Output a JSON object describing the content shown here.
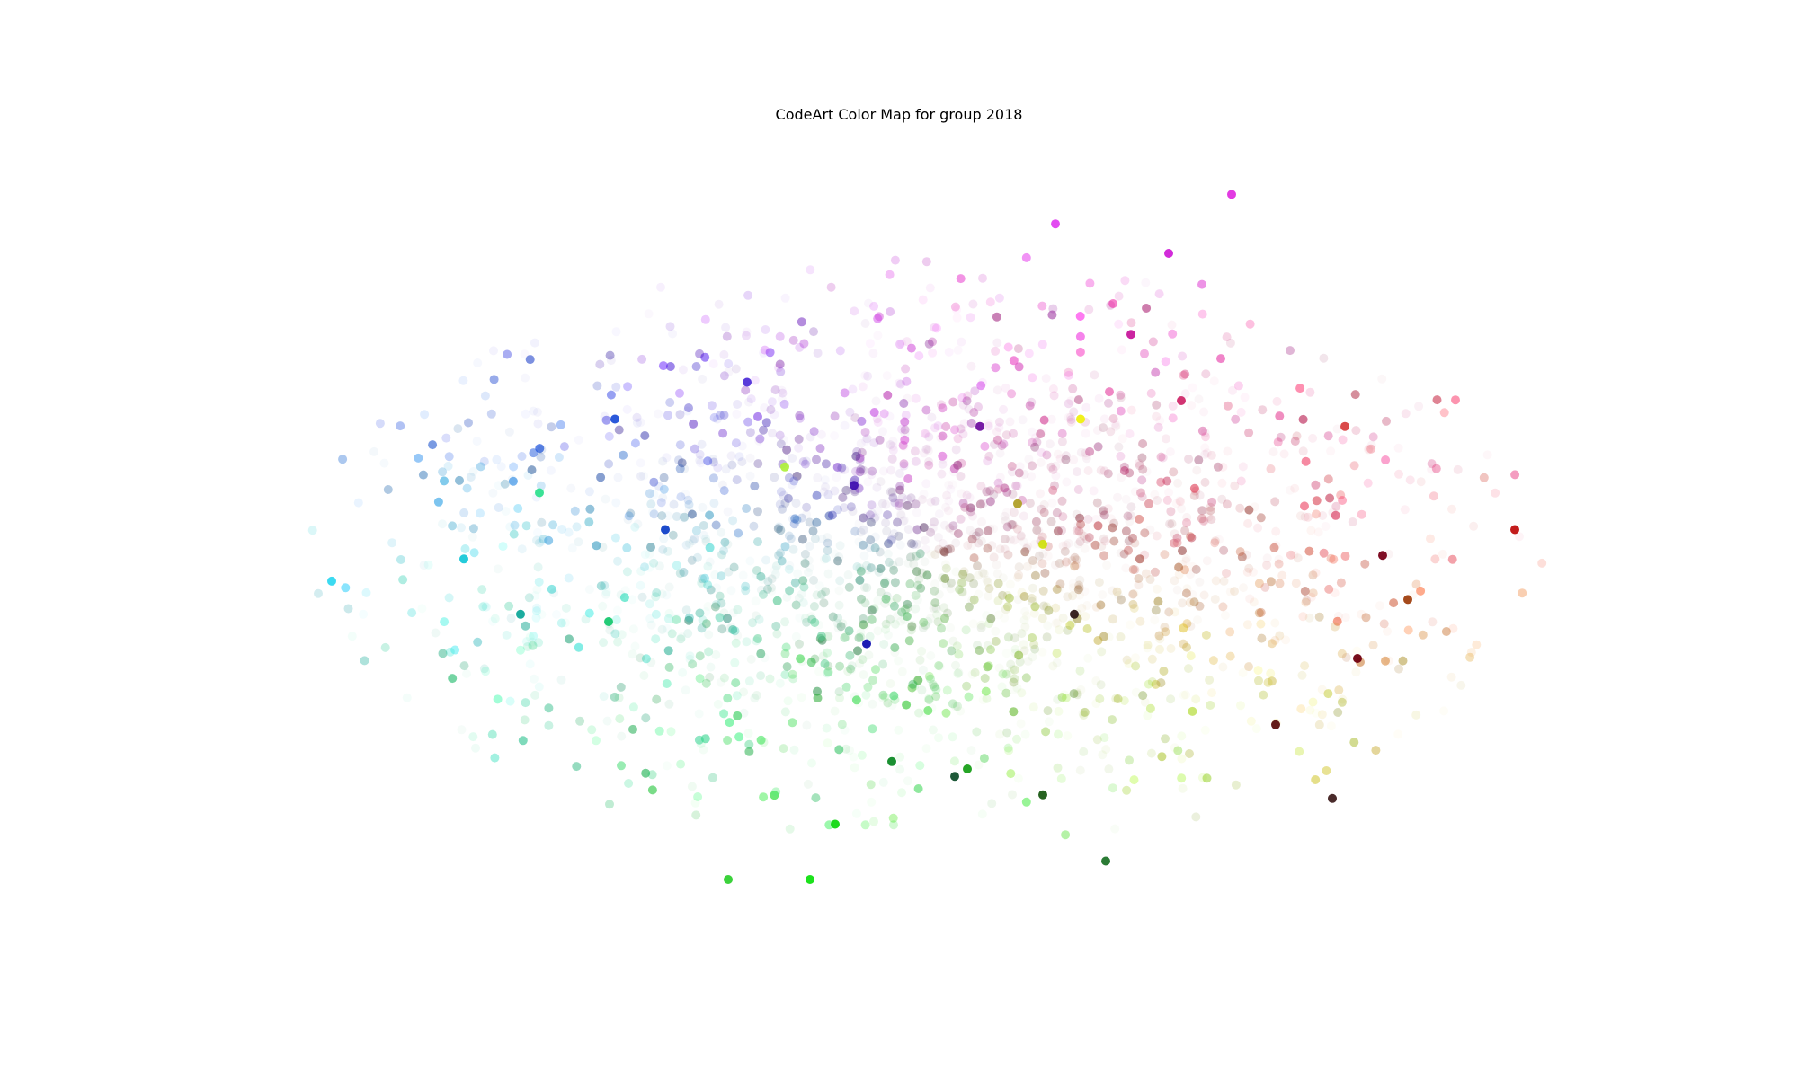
{
  "chart_data": {
    "type": "scatter",
    "title": "CodeArt Color Map for group 2018",
    "xlabel": "",
    "ylabel": "",
    "axes_visible": false,
    "grid": false,
    "legend": "none",
    "xlim": [
      -1.0,
      1.0
    ],
    "ylim": [
      -1.0,
      1.0
    ],
    "point_count": 2200,
    "background_color": "#ffffff",
    "cloud": {
      "shape": "ellipse",
      "x_extent": [
        -0.97,
        1.0
      ],
      "y_extent": [
        -0.82,
        0.8
      ],
      "density": "denser near center, sparse at edges"
    },
    "color_regions": [
      {
        "region": "left",
        "hue": "cyan",
        "color": "#1fd4ee"
      },
      {
        "region": "upper-left",
        "hue": "blue",
        "color": "#1f5fd6"
      },
      {
        "region": "upper-center",
        "hue": "violet",
        "color": "#6b2fd8"
      },
      {
        "region": "top",
        "hue": "magenta",
        "color": "#e01fe0"
      },
      {
        "region": "upper-right",
        "hue": "pink",
        "color": "#d4286e"
      },
      {
        "region": "right",
        "hue": "red",
        "color": "#c81a1a"
      },
      {
        "region": "center-right",
        "hue": "orange/brown",
        "color": "#a8521a"
      },
      {
        "region": "lower-center",
        "hue": "green",
        "color": "#14d814"
      },
      {
        "region": "lower-left",
        "hue": "teal",
        "color": "#148a74"
      },
      {
        "region": "center",
        "hue": "yellow-green/gray",
        "color": "#b6d22a"
      }
    ],
    "highlighted_points": [
      {
        "x": 0.5,
        "y": 0.96,
        "color": "#e030e0"
      },
      {
        "x": 0.22,
        "y": 0.88,
        "color": "#e040f0"
      },
      {
        "x": 0.4,
        "y": 0.8,
        "color": "#d020d8"
      },
      {
        "x": 0.34,
        "y": 0.58,
        "color": "#c8189c"
      },
      {
        "x": 0.42,
        "y": 0.4,
        "color": "#d0286a"
      },
      {
        "x": 0.68,
        "y": 0.33,
        "color": "#d84040"
      },
      {
        "x": 0.95,
        "y": 0.05,
        "color": "#c01010"
      },
      {
        "x": 0.74,
        "y": -0.02,
        "color": "#780018"
      },
      {
        "x": 0.78,
        "y": -0.14,
        "color": "#a04010"
      },
      {
        "x": 0.7,
        "y": -0.3,
        "color": "#700010"
      },
      {
        "x": 0.57,
        "y": -0.48,
        "color": "#5c1010"
      },
      {
        "x": 0.66,
        "y": -0.68,
        "color": "#402020"
      },
      {
        "x": 0.3,
        "y": -0.85,
        "color": "#20742a"
      },
      {
        "x": 0.2,
        "y": -0.67,
        "color": "#1a5a14"
      },
      {
        "x": 0.06,
        "y": -0.62,
        "color": "#12502e"
      },
      {
        "x": -0.04,
        "y": -0.58,
        "color": "#0e8a26"
      },
      {
        "x": -0.13,
        "y": -0.75,
        "color": "#10d810"
      },
      {
        "x": -0.17,
        "y": -0.9,
        "color": "#10e010"
      },
      {
        "x": -0.3,
        "y": -0.9,
        "color": "#30d030"
      },
      {
        "x": -0.08,
        "y": -0.26,
        "color": "#1010b0"
      },
      {
        "x": -0.49,
        "y": -0.2,
        "color": "#18c870"
      },
      {
        "x": -0.63,
        "y": -0.18,
        "color": "#10a89a"
      },
      {
        "x": -0.72,
        "y": -0.03,
        "color": "#18c8d8"
      },
      {
        "x": -0.93,
        "y": -0.09,
        "color": "#30d8f0"
      },
      {
        "x": -0.6,
        "y": 0.15,
        "color": "#30e090"
      },
      {
        "x": -0.4,
        "y": 0.05,
        "color": "#1040c8"
      },
      {
        "x": -0.48,
        "y": 0.35,
        "color": "#2050d8"
      },
      {
        "x": -0.27,
        "y": 0.45,
        "color": "#5030d8"
      },
      {
        "x": -0.1,
        "y": 0.17,
        "color": "#4010b0"
      },
      {
        "x": 0.1,
        "y": 0.33,
        "color": "#7010a0"
      },
      {
        "x": 0.26,
        "y": 0.35,
        "color": "#f0f010"
      },
      {
        "x": 0.16,
        "y": 0.12,
        "color": "#b0a028"
      },
      {
        "x": 0.2,
        "y": 0.01,
        "color": "#d0e010"
      },
      {
        "x": 0.25,
        "y": -0.18,
        "color": "#301818"
      },
      {
        "x": -0.21,
        "y": 0.22,
        "color": "#b0f040"
      },
      {
        "x": 0.08,
        "y": -0.6,
        "color": "#1aa01a"
      }
    ]
  }
}
